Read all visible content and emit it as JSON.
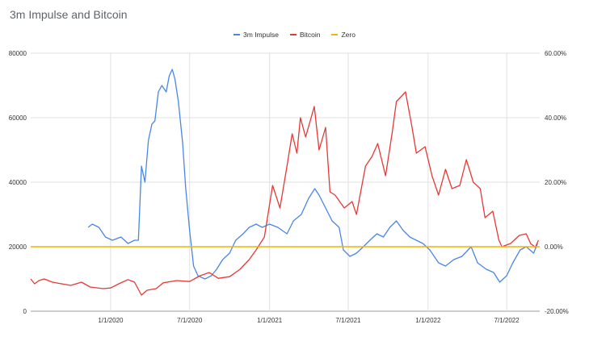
{
  "title": "3m Impulse and Bitcoin",
  "colors": {
    "impulse": "#4a86e8",
    "bitcoin": "#e53935",
    "zero": "#f4b400",
    "grid": "#e0e0e0"
  },
  "chart_data": {
    "type": "line",
    "title": "3m Impulse and Bitcoin",
    "legend_position": "top-center",
    "grid": true,
    "x_range": [
      "2019-07-01",
      "2022-09-15"
    ],
    "x_ticks": [
      {
        "date": "2020-01-01",
        "label": "1/1/2020"
      },
      {
        "date": "2020-07-01",
        "label": "7/1/2020"
      },
      {
        "date": "2021-01-01",
        "label": "1/1/2021"
      },
      {
        "date": "2021-07-01",
        "label": "7/1/2021"
      },
      {
        "date": "2022-01-01",
        "label": "1/1/2022"
      },
      {
        "date": "2022-07-01",
        "label": "7/1/2022"
      }
    ],
    "left_axis": {
      "ylim": [
        0,
        80000
      ],
      "ticks": [
        0,
        20000,
        40000,
        60000,
        80000
      ],
      "tick_labels": [
        "0",
        "20000",
        "40000",
        "60000",
        "80000"
      ]
    },
    "right_axis": {
      "ylim": [
        -20,
        60
      ],
      "ticks": [
        -20,
        0,
        20,
        40,
        60
      ],
      "tick_labels": [
        "-20.00%",
        "0.00%",
        "20.00%",
        "40.00%",
        "60.00%"
      ]
    },
    "series": [
      {
        "name": "3m Impulse",
        "axis": "right",
        "color": "#4a86e8",
        "points": [
          [
            "2019-11-10",
            6
          ],
          [
            "2019-11-20",
            7
          ],
          [
            "2019-12-05",
            6
          ],
          [
            "2019-12-20",
            3
          ],
          [
            "2020-01-05",
            2
          ],
          [
            "2020-01-25",
            3
          ],
          [
            "2020-02-10",
            1
          ],
          [
            "2020-02-25",
            2
          ],
          [
            "2020-03-05",
            2
          ],
          [
            "2020-03-12",
            25
          ],
          [
            "2020-03-20",
            20
          ],
          [
            "2020-03-28",
            33
          ],
          [
            "2020-04-05",
            38
          ],
          [
            "2020-04-12",
            39
          ],
          [
            "2020-04-20",
            48
          ],
          [
            "2020-04-28",
            50
          ],
          [
            "2020-05-08",
            48
          ],
          [
            "2020-05-15",
            53
          ],
          [
            "2020-05-22",
            55
          ],
          [
            "2020-05-28",
            52
          ],
          [
            "2020-06-05",
            45
          ],
          [
            "2020-06-15",
            32
          ],
          [
            "2020-06-22",
            18
          ],
          [
            "2020-07-01",
            5
          ],
          [
            "2020-07-10",
            -6
          ],
          [
            "2020-07-20",
            -9
          ],
          [
            "2020-08-05",
            -10
          ],
          [
            "2020-08-20",
            -9
          ],
          [
            "2020-09-01",
            -7
          ],
          [
            "2020-09-15",
            -4
          ],
          [
            "2020-10-01",
            -2
          ],
          [
            "2020-10-15",
            2
          ],
          [
            "2020-11-01",
            4
          ],
          [
            "2020-11-15",
            6
          ],
          [
            "2020-12-01",
            7
          ],
          [
            "2020-12-15",
            6
          ],
          [
            "2021-01-01",
            7
          ],
          [
            "2021-01-20",
            6
          ],
          [
            "2021-02-10",
            4
          ],
          [
            "2021-02-25",
            8
          ],
          [
            "2021-03-15",
            10
          ],
          [
            "2021-04-01",
            15
          ],
          [
            "2021-04-15",
            18
          ],
          [
            "2021-04-25",
            16
          ],
          [
            "2021-05-10",
            12
          ],
          [
            "2021-05-25",
            8
          ],
          [
            "2021-06-10",
            6
          ],
          [
            "2021-06-20",
            -1
          ],
          [
            "2021-07-05",
            -3
          ],
          [
            "2021-07-20",
            -2
          ],
          [
            "2021-08-05",
            0
          ],
          [
            "2021-08-20",
            2
          ],
          [
            "2021-09-05",
            4
          ],
          [
            "2021-09-20",
            3
          ],
          [
            "2021-10-05",
            6
          ],
          [
            "2021-10-20",
            8
          ],
          [
            "2021-11-05",
            5
          ],
          [
            "2021-11-20",
            3
          ],
          [
            "2021-12-05",
            2
          ],
          [
            "2021-12-20",
            1
          ],
          [
            "2022-01-05",
            -1
          ],
          [
            "2022-01-25",
            -5
          ],
          [
            "2022-02-10",
            -6
          ],
          [
            "2022-03-01",
            -4
          ],
          [
            "2022-03-20",
            -3
          ],
          [
            "2022-04-10",
            0
          ],
          [
            "2022-04-25",
            -5
          ],
          [
            "2022-05-15",
            -7
          ],
          [
            "2022-06-01",
            -8
          ],
          [
            "2022-06-15",
            -11
          ],
          [
            "2022-07-01",
            -9
          ],
          [
            "2022-07-15",
            -5
          ],
          [
            "2022-08-01",
            -1
          ],
          [
            "2022-08-15",
            0
          ],
          [
            "2022-09-01",
            -2
          ],
          [
            "2022-09-10",
            1
          ]
        ]
      },
      {
        "name": "Bitcoin",
        "axis": "left",
        "color": "#e53935",
        "points": [
          [
            "2019-07-01",
            10000
          ],
          [
            "2019-07-10",
            8500
          ],
          [
            "2019-07-20",
            9500
          ],
          [
            "2019-08-01",
            10000
          ],
          [
            "2019-08-20",
            9000
          ],
          [
            "2019-09-10",
            8500
          ],
          [
            "2019-10-01",
            8000
          ],
          [
            "2019-10-26",
            9000
          ],
          [
            "2019-11-15",
            7500
          ],
          [
            "2019-12-15",
            7000
          ],
          [
            "2020-01-01",
            7200
          ],
          [
            "2020-01-20",
            8500
          ],
          [
            "2020-02-10",
            9800
          ],
          [
            "2020-02-25",
            9000
          ],
          [
            "2020-03-12",
            5000
          ],
          [
            "2020-03-25",
            6500
          ],
          [
            "2020-04-15",
            7000
          ],
          [
            "2020-05-01",
            8800
          ],
          [
            "2020-06-01",
            9500
          ],
          [
            "2020-07-01",
            9200
          ],
          [
            "2020-07-25",
            11000
          ],
          [
            "2020-08-15",
            12000
          ],
          [
            "2020-09-05",
            10200
          ],
          [
            "2020-10-01",
            10700
          ],
          [
            "2020-10-25",
            13000
          ],
          [
            "2020-11-15",
            16000
          ],
          [
            "2020-12-01",
            19000
          ],
          [
            "2020-12-20",
            23000
          ],
          [
            "2021-01-08",
            39000
          ],
          [
            "2021-01-25",
            32000
          ],
          [
            "2021-02-10",
            45000
          ],
          [
            "2021-02-22",
            55000
          ],
          [
            "2021-03-05",
            49000
          ],
          [
            "2021-03-13",
            60000
          ],
          [
            "2021-03-25",
            54000
          ],
          [
            "2021-04-14",
            63500
          ],
          [
            "2021-04-25",
            50000
          ],
          [
            "2021-05-10",
            57000
          ],
          [
            "2021-05-20",
            37000
          ],
          [
            "2021-06-01",
            36000
          ],
          [
            "2021-06-22",
            32000
          ],
          [
            "2021-07-10",
            34000
          ],
          [
            "2021-07-20",
            30000
          ],
          [
            "2021-08-10",
            45000
          ],
          [
            "2021-08-25",
            48000
          ],
          [
            "2021-09-07",
            52000
          ],
          [
            "2021-09-25",
            42000
          ],
          [
            "2021-10-10",
            55000
          ],
          [
            "2021-10-20",
            65000
          ],
          [
            "2021-11-10",
            68000
          ],
          [
            "2021-11-25",
            57000
          ],
          [
            "2021-12-05",
            49000
          ],
          [
            "2021-12-25",
            51000
          ],
          [
            "2022-01-10",
            42000
          ],
          [
            "2022-01-25",
            36000
          ],
          [
            "2022-02-10",
            44000
          ],
          [
            "2022-02-25",
            38000
          ],
          [
            "2022-03-15",
            39000
          ],
          [
            "2022-03-30",
            47000
          ],
          [
            "2022-04-15",
            40000
          ],
          [
            "2022-05-01",
            38000
          ],
          [
            "2022-05-12",
            29000
          ],
          [
            "2022-05-30",
            31000
          ],
          [
            "2022-06-13",
            22000
          ],
          [
            "2022-06-20",
            20000
          ],
          [
            "2022-07-10",
            21000
          ],
          [
            "2022-07-30",
            23500
          ],
          [
            "2022-08-15",
            24000
          ],
          [
            "2022-08-25",
            21000
          ],
          [
            "2022-09-05",
            19800
          ],
          [
            "2022-09-12",
            22000
          ]
        ]
      },
      {
        "name": "Zero",
        "axis": "right",
        "color": "#f4b400",
        "points": [
          [
            "2019-07-01",
            0
          ],
          [
            "2022-09-15",
            0
          ]
        ]
      }
    ]
  }
}
